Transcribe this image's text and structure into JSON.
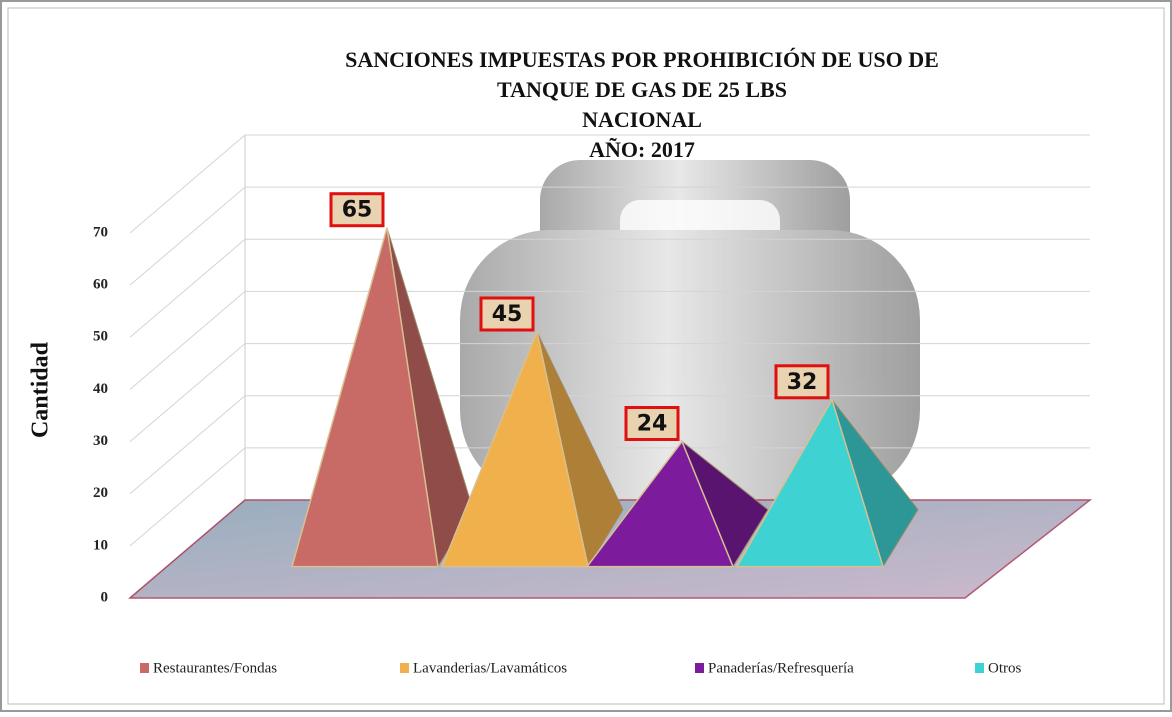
{
  "chart_data": {
    "type": "pyramid",
    "title": [
      "SANCIONES IMPUESTAS POR PROHIBICIÓN DE USO DE",
      "TANQUE DE GAS DE 25 LBS",
      "NACIONAL",
      "AÑO: 2017"
    ],
    "y_label": "Cantidad",
    "ylim": [
      0,
      70
    ],
    "yticks": [
      0,
      10,
      20,
      30,
      40,
      50,
      60,
      70
    ],
    "grid": true,
    "legend": "bottom",
    "series": [
      {
        "name": "Restaurantes/Fondas",
        "color": "#c86a66",
        "values": [
          65
        ]
      },
      {
        "name": "Lavanderias/Lavamáticos",
        "color": "#f0b04c",
        "values": [
          45
        ]
      },
      {
        "name": "Panaderías/Refresquería",
        "color": "#7c1c9c",
        "values": [
          24
        ]
      },
      {
        "name": "Otros",
        "color": "#3ed2d2",
        "values": [
          32
        ]
      }
    ]
  }
}
